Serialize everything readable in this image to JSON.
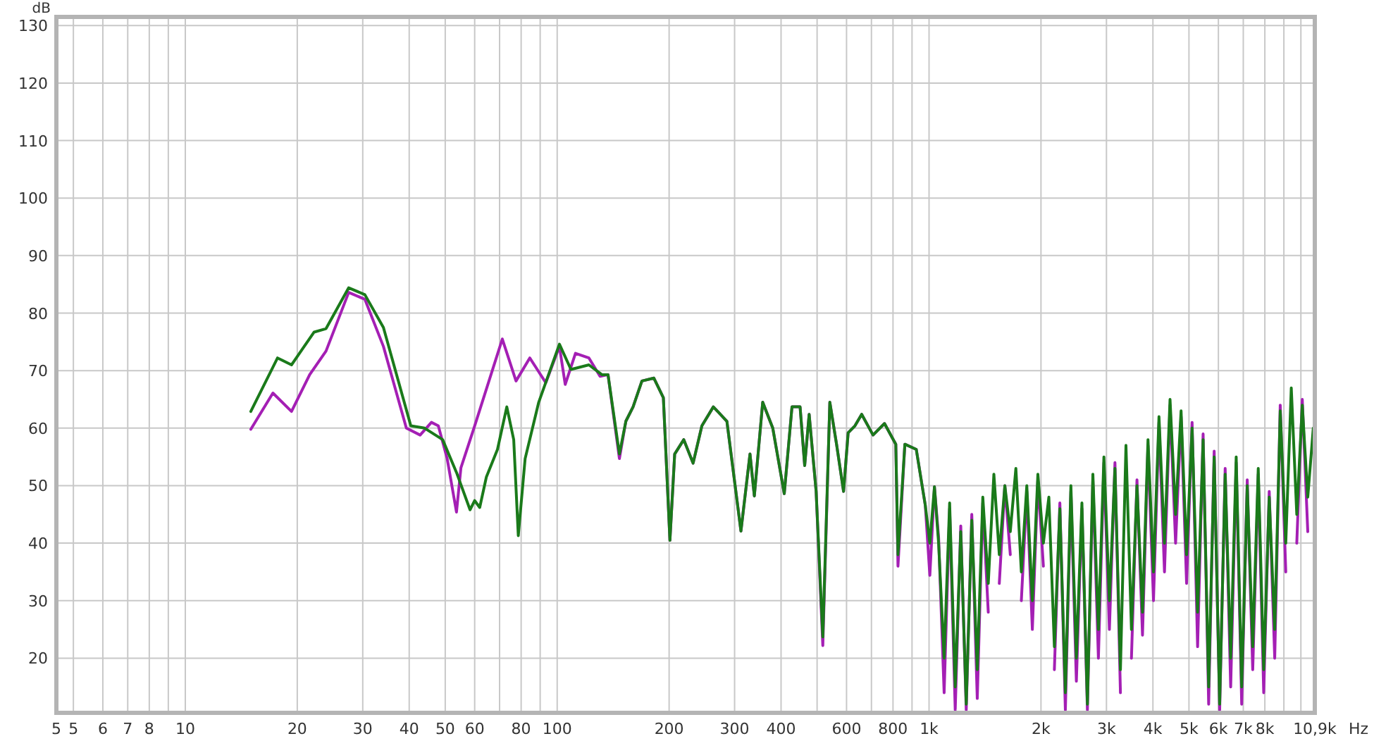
{
  "chart_data": {
    "type": "line",
    "xlabel": "Hz",
    "ylabel": "dB",
    "log": "x",
    "grid": true,
    "line_style": "solid",
    "xlim": [
      4.5,
      10900
    ],
    "ylim": [
      10.5,
      131.5
    ],
    "xticks": [
      {
        "value": 4.5,
        "label": "5"
      },
      5,
      6,
      7,
      8,
      {
        "value": 9,
        "label": null
      },
      10,
      20,
      30,
      40,
      50,
      60,
      {
        "value": 70,
        "label": null
      },
      80,
      {
        "value": 90,
        "label": null
      },
      100,
      200,
      300,
      400,
      {
        "value": 500,
        "label": null
      },
      600,
      {
        "value": 700,
        "label": null
      },
      800,
      {
        "value": 900,
        "label": null
      },
      {
        "value": 1000,
        "label": "1k"
      },
      {
        "value": 2000,
        "label": "2k"
      },
      {
        "value": 3000,
        "label": "3k"
      },
      {
        "value": 4000,
        "label": "4k"
      },
      {
        "value": 5000,
        "label": "5k"
      },
      {
        "value": 6000,
        "label": "6k"
      },
      {
        "value": 7000,
        "label": "7k"
      },
      {
        "value": 8000,
        "label": "8k"
      },
      {
        "value": 9000,
        "label": null
      },
      {
        "value": 10000,
        "label": null
      },
      {
        "value": 10900,
        "label": "10,9k"
      }
    ],
    "yticks": [
      20,
      30,
      40,
      50,
      60,
      70,
      80,
      90,
      100,
      110,
      120,
      130
    ],
    "series": [
      {
        "color": "#a41fb4",
        "x": [
          15,
          17.2,
          19.3,
          21.6,
          23.9,
          27.5,
          30.4,
          34.1,
          39.3,
          42.8,
          45.9,
          47.9,
          50.6,
          53.6,
          55.1,
          60,
          71.2,
          77.5,
          84.4,
          93.2,
          101.4,
          105.1,
          112,
          121.7,
          130.4,
          137,
          147,
          153,
          160,
          169,
          182,
          193,
          201,
          207,
          219,
          232,
          245,
          263,
          286,
          312,
          330,
          339,
          357,
          380,
          408,
          428,
          450,
          463,
          476,
          497,
          518,
          541,
          564,
          589,
          606,
          632,
          659,
          707,
          759,
          814,
          825,
          861,
          924,
          977,
          1005,
          1034,
          1061,
          1098,
          1136,
          1176,
          1217,
          1259,
          1303,
          1348,
          1395,
          1443,
          1494,
          1545,
          1599,
          1654,
          1712,
          1771,
          1832,
          1896,
          1962,
          2030,
          2100,
          2173,
          2248,
          2326,
          2407,
          2490,
          2577,
          2666,
          2758,
          2854,
          2953,
          3055,
          3162,
          3271,
          3385,
          3502,
          3624,
          3750,
          3880,
          4014,
          4153,
          4297,
          4447,
          4603,
          4762,
          4927,
          5098,
          5275,
          5458,
          5649,
          5845,
          6047,
          6257,
          6474,
          6699,
          6931,
          7173,
          7421,
          7679,
          7943,
          8219,
          8504,
          8799,
          9106,
          9422,
          9748,
          10086,
          10435
        ],
        "values": [
          59.8,
          66.1,
          62.9,
          69.3,
          73.4,
          83.6,
          82.4,
          74.2,
          60,
          58.8,
          61,
          60.4,
          54.7,
          45.4,
          53.1,
          60.4,
          75.5,
          68.2,
          72.2,
          67.9,
          74.2,
          67.6,
          73,
          72.2,
          69,
          69.3,
          54.7,
          61.2,
          63.7,
          68.2,
          68.7,
          65.3,
          40.5,
          55.5,
          58,
          53.9,
          60.4,
          63.7,
          61.2,
          42.1,
          55.5,
          48.2,
          64.5,
          60,
          48.6,
          63.7,
          63.7,
          53.5,
          62.4,
          49,
          22.2,
          64.5,
          57.2,
          49,
          59.2,
          60.4,
          62.4,
          58.8,
          60.8,
          57.2,
          36,
          57.2,
          56.3,
          46.6,
          34.4,
          49.8,
          41,
          14,
          46,
          11,
          43,
          11,
          45,
          13,
          47,
          28,
          null,
          33,
          50,
          38,
          null,
          30,
          49,
          25,
          51,
          36,
          null,
          18,
          47,
          11,
          49,
          16,
          46,
          11,
          51,
          20,
          54,
          25,
          54,
          14,
          null,
          20,
          51,
          24,
          57,
          30,
          61,
          35,
          64,
          40,
          62,
          33,
          61,
          22,
          59,
          12,
          56,
          11,
          53,
          15,
          54,
          12,
          51,
          18,
          52,
          14,
          49,
          20,
          64,
          35,
          null,
          40,
          65,
          42
        ]
      },
      {
        "color": "#1a7a1a",
        "x": [
          15,
          17.7,
          19.3,
          22.2,
          23.9,
          27.5,
          30.4,
          34.1,
          40.4,
          44,
          49.2,
          53.6,
          58.3,
          60,
          61.9,
          64.5,
          69.1,
          73.2,
          76.4,
          78.6,
          82,
          89.2,
          101.4,
          108.9,
          121.7,
          131.9,
          137,
          147,
          153,
          160,
          169,
          182,
          193,
          201,
          207,
          219,
          232,
          245,
          263,
          286,
          312,
          330,
          339,
          357,
          380,
          408,
          428,
          450,
          463,
          476,
          497,
          518,
          541,
          564,
          589,
          606,
          632,
          659,
          707,
          759,
          814,
          825,
          861,
          924,
          977,
          1005,
          1034,
          1061,
          1098,
          1136,
          1176,
          1217,
          1259,
          1303,
          1348,
          1395,
          1443,
          1494,
          1545,
          1599,
          1654,
          1712,
          1771,
          1832,
          1896,
          1962,
          2030,
          2100,
          2173,
          2248,
          2326,
          2407,
          2490,
          2577,
          2666,
          2758,
          2854,
          2953,
          3055,
          3162,
          3271,
          3385,
          3502,
          3624,
          3750,
          3880,
          4014,
          4153,
          4297,
          4447,
          4603,
          4762,
          4927,
          5098,
          5275,
          5458,
          5649,
          5845,
          6047,
          6257,
          6474,
          6699,
          6931,
          7173,
          7421,
          7679,
          7943,
          8219,
          8504,
          8799,
          9106,
          9422,
          9748,
          10086,
          10435,
          10797
        ],
        "values": [
          62.9,
          72.2,
          71,
          76.7,
          77.3,
          84.4,
          83.2,
          77.5,
          60.4,
          60,
          58,
          52.3,
          45.8,
          47.4,
          46.2,
          51.5,
          56.3,
          63.7,
          58,
          41.3,
          54.7,
          64.5,
          74.6,
          70.2,
          71,
          69.3,
          69.3,
          55.5,
          61.2,
          63.7,
          68.2,
          68.7,
          65.3,
          40.5,
          55.5,
          58,
          53.9,
          60.4,
          63.7,
          61.2,
          42.1,
          55.5,
          48.2,
          64.5,
          60,
          48.6,
          63.7,
          63.7,
          53.5,
          62.4,
          49,
          23.7,
          64.5,
          57.2,
          49,
          59.2,
          60.4,
          62.4,
          58.8,
          60.8,
          57.2,
          38,
          57.2,
          56.3,
          46.6,
          40,
          49.8,
          40,
          20,
          47,
          15,
          42,
          12,
          44,
          18,
          48,
          33,
          52,
          38,
          50,
          42,
          53,
          35,
          50,
          30,
          52,
          40,
          48,
          22,
          46,
          14,
          50,
          20,
          47,
          12,
          52,
          25,
          55,
          30,
          53,
          18,
          57,
          25,
          50,
          28,
          58,
          35,
          62,
          40,
          65,
          45,
          63,
          38,
          60,
          28,
          58,
          15,
          55,
          12,
          52,
          20,
          55,
          15,
          50,
          22,
          53,
          18,
          48,
          25,
          63,
          40,
          67,
          45,
          64,
          48,
          60
        ]
      }
    ]
  }
}
